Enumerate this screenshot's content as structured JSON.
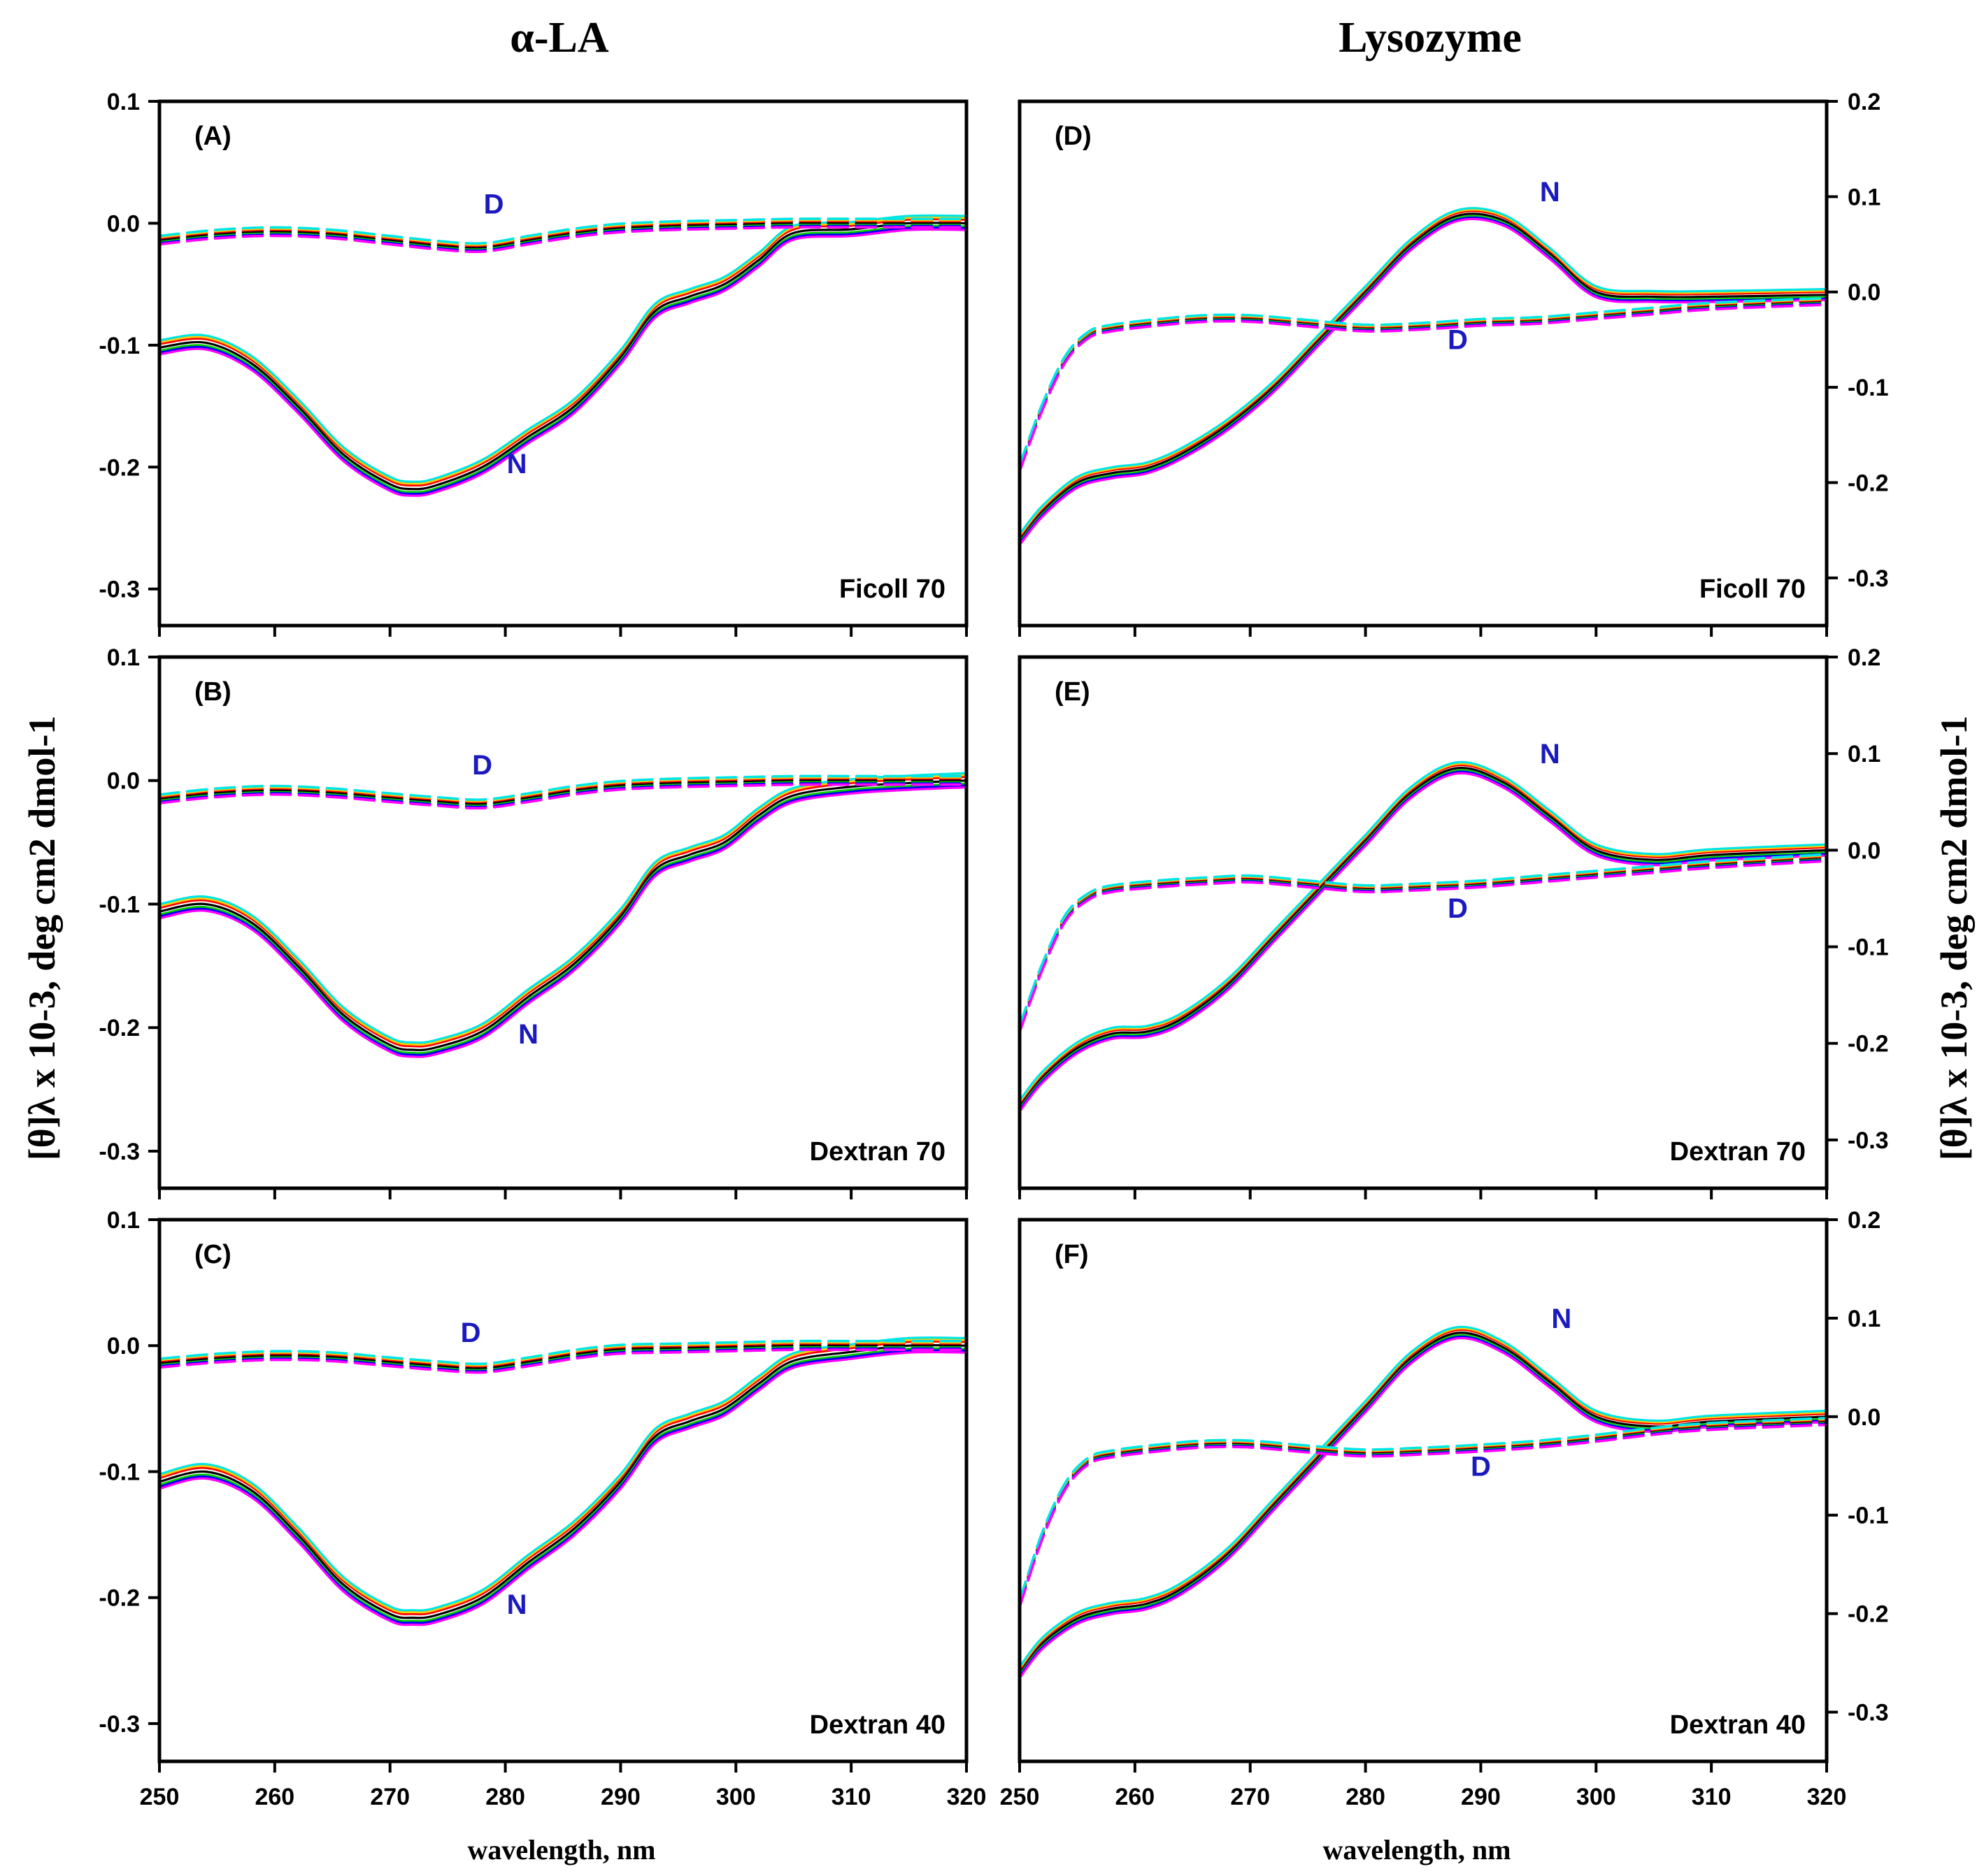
{
  "colors": {
    "annotation": "#1a1abf",
    "series": [
      "#000000",
      "#ff0000",
      "#00cc00",
      "#ffcc00",
      "#0000ff",
      "#00e5e5",
      "#ff00ff"
    ]
  },
  "figure": {
    "col_titles": [
      "α-LA",
      "Lysozyme"
    ],
    "xlabel": "wavelength, nm",
    "ylabel_left": "[θ]λ x 10-3, deg cm2 dmol-1",
    "ylabel_right": "[θ]λ x 10-3, deg cm2 dmol-1"
  },
  "chart_data": [
    {
      "type": "line",
      "id": "A",
      "label": "(A)",
      "condition": "Ficoll 70",
      "xlim": [
        250,
        320
      ],
      "ylim": [
        -0.33,
        0.1
      ],
      "xticks": [
        250,
        260,
        270,
        280,
        290,
        300,
        310,
        320
      ],
      "yticks": [
        0.1,
        0.0,
        -0.1,
        -0.2,
        -0.3
      ],
      "ytick_labels": [
        "0.1",
        "0.0",
        "-0.1",
        "-0.2",
        "-0.3"
      ],
      "yaxis": "left",
      "show_xtick_labels": false,
      "annotations": [
        {
          "text": "D",
          "x": 279,
          "y": 0.008
        },
        {
          "text": "N",
          "x": 281,
          "y": -0.205
        }
      ],
      "series": [
        {
          "name": "N",
          "style": "solid",
          "x": [
            250,
            254,
            258,
            262,
            266,
            270,
            272,
            274,
            278,
            282,
            286,
            290,
            293,
            296,
            299,
            302,
            305,
            310,
            315,
            320
          ],
          "y": [
            -0.102,
            -0.098,
            -0.115,
            -0.15,
            -0.19,
            -0.214,
            -0.218,
            -0.215,
            -0.2,
            -0.175,
            -0.15,
            -0.11,
            -0.072,
            -0.06,
            -0.05,
            -0.03,
            -0.008,
            -0.005,
            0.0,
            0.0
          ]
        },
        {
          "name": "D",
          "style": "dashed",
          "x": [
            250,
            255,
            260,
            265,
            270,
            274,
            278,
            282,
            286,
            290,
            295,
            300,
            305,
            310,
            315,
            320
          ],
          "y": [
            -0.014,
            -0.009,
            -0.007,
            -0.009,
            -0.014,
            -0.018,
            -0.02,
            -0.014,
            -0.008,
            -0.004,
            -0.002,
            -0.001,
            0.0,
            0.0,
            0.0,
            0.0
          ]
        }
      ]
    },
    {
      "type": "line",
      "id": "B",
      "label": "(B)",
      "condition": "Dextran 70",
      "xlim": [
        250,
        320
      ],
      "ylim": [
        -0.33,
        0.1
      ],
      "xticks": [
        250,
        260,
        270,
        280,
        290,
        300,
        310,
        320
      ],
      "yticks": [
        0.1,
        0.0,
        -0.1,
        -0.2,
        -0.3
      ],
      "ytick_labels": [
        "0.1",
        "0.0",
        "-0.1",
        "-0.2",
        "-0.3"
      ],
      "yaxis": "left",
      "show_xtick_labels": false,
      "annotations": [
        {
          "text": "D",
          "x": 278,
          "y": 0.005
        },
        {
          "text": "N",
          "x": 282,
          "y": -0.213
        }
      ],
      "series": [
        {
          "name": "N",
          "style": "solid",
          "x": [
            250,
            254,
            258,
            262,
            266,
            270,
            272,
            274,
            278,
            282,
            286,
            290,
            293,
            296,
            299,
            302,
            305,
            310,
            315,
            320
          ],
          "y": [
            -0.106,
            -0.1,
            -0.115,
            -0.15,
            -0.19,
            -0.214,
            -0.218,
            -0.216,
            -0.203,
            -0.175,
            -0.148,
            -0.11,
            -0.072,
            -0.06,
            -0.05,
            -0.028,
            -0.012,
            -0.005,
            -0.002,
            0.0
          ]
        },
        {
          "name": "D",
          "style": "dashed",
          "x": [
            250,
            255,
            260,
            265,
            270,
            274,
            278,
            282,
            286,
            290,
            295,
            300,
            305,
            310,
            315,
            320
          ],
          "y": [
            -0.015,
            -0.01,
            -0.008,
            -0.01,
            -0.014,
            -0.017,
            -0.019,
            -0.014,
            -0.008,
            -0.004,
            -0.002,
            -0.001,
            0.0,
            0.0,
            0.0,
            0.0
          ]
        }
      ]
    },
    {
      "type": "line",
      "id": "C",
      "label": "(C)",
      "condition": "Dextran 40",
      "xlim": [
        250,
        320
      ],
      "ylim": [
        -0.33,
        0.1
      ],
      "xticks": [
        250,
        260,
        270,
        280,
        290,
        300,
        310,
        320
      ],
      "yticks": [
        0.1,
        0.0,
        -0.1,
        -0.2,
        -0.3
      ],
      "ytick_labels": [
        "0.1",
        "0.0",
        "-0.1",
        "-0.2",
        "-0.3"
      ],
      "yaxis": "left",
      "show_xtick_labels": true,
      "annotations": [
        {
          "text": "D",
          "x": 277,
          "y": 0.003
        },
        {
          "text": "N",
          "x": 281,
          "y": -0.213
        }
      ],
      "series": [
        {
          "name": "N",
          "style": "solid",
          "x": [
            250,
            254,
            258,
            262,
            266,
            270,
            272,
            274,
            278,
            282,
            286,
            290,
            293,
            296,
            299,
            302,
            305,
            310,
            315,
            320
          ],
          "y": [
            -0.108,
            -0.1,
            -0.115,
            -0.15,
            -0.19,
            -0.213,
            -0.216,
            -0.214,
            -0.2,
            -0.172,
            -0.145,
            -0.108,
            -0.072,
            -0.06,
            -0.05,
            -0.03,
            -0.012,
            -0.005,
            0.0,
            0.0
          ]
        },
        {
          "name": "D",
          "style": "dashed",
          "x": [
            250,
            255,
            260,
            265,
            270,
            274,
            278,
            282,
            286,
            290,
            295,
            300,
            305,
            310,
            315,
            320
          ],
          "y": [
            -0.014,
            -0.01,
            -0.008,
            -0.009,
            -0.013,
            -0.016,
            -0.018,
            -0.013,
            -0.007,
            -0.003,
            -0.002,
            -0.001,
            0.0,
            0.0,
            0.0,
            0.0
          ]
        }
      ]
    },
    {
      "type": "line",
      "id": "D",
      "label": "(D)",
      "condition": "Ficoll 70",
      "xlim": [
        250,
        320
      ],
      "ylim": [
        -0.35,
        0.2
      ],
      "xticks": [
        250,
        260,
        270,
        280,
        290,
        300,
        310,
        320
      ],
      "yticks": [
        0.2,
        0.1,
        0.0,
        -0.1,
        -0.2,
        -0.3
      ],
      "ytick_labels": [
        "0.2",
        "0.1",
        "0.0",
        "-0.1",
        "-0.2",
        "-0.3"
      ],
      "yaxis": "right",
      "show_xtick_labels": false,
      "annotations": [
        {
          "text": "N",
          "x": 296,
          "y": 0.095
        },
        {
          "text": "D",
          "x": 288,
          "y": -0.06
        }
      ],
      "series": [
        {
          "name": "N",
          "style": "solid",
          "x": [
            250,
            252,
            255,
            258,
            261,
            264,
            268,
            272,
            276,
            280,
            284,
            288,
            292,
            296,
            300,
            305,
            310,
            320
          ],
          "y": [
            -0.26,
            -0.23,
            -0.2,
            -0.19,
            -0.185,
            -0.17,
            -0.14,
            -0.1,
            -0.05,
            0.0,
            0.05,
            0.08,
            0.075,
            0.04,
            0.0,
            -0.005,
            -0.005,
            -0.003
          ]
        },
        {
          "name": "D",
          "style": "dashed",
          "x": [
            250,
            252,
            254,
            256,
            258,
            262,
            266,
            270,
            275,
            280,
            285,
            290,
            295,
            300,
            305,
            310,
            320
          ],
          "y": [
            -0.185,
            -0.12,
            -0.07,
            -0.045,
            -0.038,
            -0.032,
            -0.028,
            -0.028,
            -0.033,
            -0.038,
            -0.036,
            -0.032,
            -0.03,
            -0.025,
            -0.02,
            -0.015,
            -0.01
          ]
        }
      ]
    },
    {
      "type": "line",
      "id": "E",
      "label": "(E)",
      "condition": "Dextran 70",
      "xlim": [
        250,
        320
      ],
      "ylim": [
        -0.35,
        0.2
      ],
      "xticks": [
        250,
        260,
        270,
        280,
        290,
        300,
        310,
        320
      ],
      "yticks": [
        0.2,
        0.1,
        0.0,
        -0.1,
        -0.2,
        -0.3
      ],
      "ytick_labels": [
        "0.2",
        "0.1",
        "0.0",
        "-0.1",
        "-0.2",
        "-0.3"
      ],
      "yaxis": "right",
      "show_xtick_labels": false,
      "annotations": [
        {
          "text": "N",
          "x": 296,
          "y": 0.09
        },
        {
          "text": "D",
          "x": 288,
          "y": -0.07
        }
      ],
      "series": [
        {
          "name": "N",
          "style": "solid",
          "x": [
            250,
            252,
            255,
            258,
            261,
            264,
            268,
            272,
            276,
            280,
            284,
            288,
            292,
            296,
            300,
            305,
            310,
            320
          ],
          "y": [
            -0.265,
            -0.235,
            -0.205,
            -0.19,
            -0.188,
            -0.175,
            -0.14,
            -0.09,
            -0.04,
            0.01,
            0.06,
            0.085,
            0.07,
            0.035,
            0.0,
            -0.01,
            -0.005,
            0.0
          ]
        },
        {
          "name": "D",
          "style": "dashed",
          "x": [
            250,
            252,
            254,
            256,
            258,
            262,
            266,
            270,
            275,
            280,
            285,
            290,
            295,
            300,
            305,
            310,
            320
          ],
          "y": [
            -0.185,
            -0.12,
            -0.07,
            -0.048,
            -0.04,
            -0.035,
            -0.032,
            -0.03,
            -0.035,
            -0.04,
            -0.038,
            -0.035,
            -0.03,
            -0.025,
            -0.02,
            -0.015,
            -0.008
          ]
        }
      ]
    },
    {
      "type": "line",
      "id": "F",
      "label": "(F)",
      "condition": "Dextran 40",
      "xlim": [
        250,
        320
      ],
      "ylim": [
        -0.35,
        0.2
      ],
      "xticks": [
        250,
        260,
        270,
        280,
        290,
        300,
        310,
        320
      ],
      "yticks": [
        0.2,
        0.1,
        0.0,
        -0.1,
        -0.2,
        -0.3
      ],
      "ytick_labels": [
        "0.2",
        "0.1",
        "0.0",
        "-0.1",
        "-0.2",
        "-0.3"
      ],
      "yaxis": "right",
      "show_xtick_labels": true,
      "annotations": [
        {
          "text": "N",
          "x": 297,
          "y": 0.09
        },
        {
          "text": "D",
          "x": 290,
          "y": -0.06
        }
      ],
      "series": [
        {
          "name": "N",
          "style": "solid",
          "x": [
            250,
            252,
            255,
            258,
            261,
            264,
            268,
            272,
            276,
            280,
            284,
            288,
            292,
            296,
            300,
            305,
            310,
            320
          ],
          "y": [
            -0.26,
            -0.23,
            -0.205,
            -0.195,
            -0.19,
            -0.175,
            -0.14,
            -0.09,
            -0.04,
            0.01,
            0.06,
            0.085,
            0.07,
            0.035,
            0.0,
            -0.01,
            -0.005,
            0.0
          ]
        },
        {
          "name": "D",
          "style": "dashed",
          "x": [
            250,
            252,
            254,
            256,
            258,
            262,
            266,
            270,
            275,
            280,
            285,
            290,
            295,
            300,
            305,
            310,
            320
          ],
          "y": [
            -0.19,
            -0.12,
            -0.07,
            -0.045,
            -0.038,
            -0.032,
            -0.028,
            -0.028,
            -0.033,
            -0.037,
            -0.035,
            -0.032,
            -0.028,
            -0.022,
            -0.015,
            -0.01,
            -0.005
          ]
        }
      ]
    }
  ]
}
